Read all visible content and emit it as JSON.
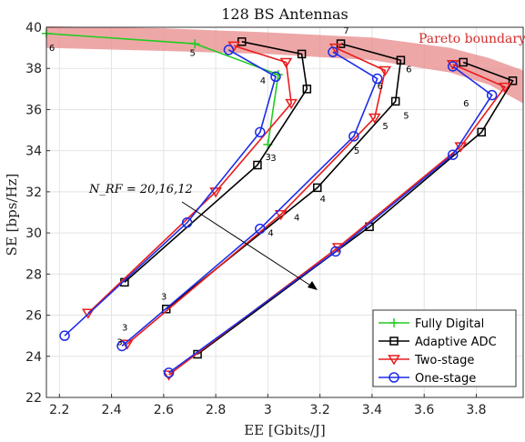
{
  "chart_data": {
    "type": "line",
    "title": "128 BS Antennas",
    "xlabel": "EE [Gbits/J]",
    "ylabel": "SE [bps/Hz]",
    "xlim": [
      2.15,
      3.98
    ],
    "ylim": [
      22,
      40
    ],
    "xticks": [
      "2.2",
      "2.4",
      "2.6",
      "2.8",
      "3",
      "3.2",
      "3.4",
      "3.6",
      "3.8"
    ],
    "yticks": [
      "22",
      "24",
      "26",
      "28",
      "30",
      "32",
      "34",
      "36",
      "38",
      "40"
    ],
    "grid": true,
    "legend_position": "bottom-right",
    "pareto_label": "Pareto boundary",
    "nrf_label": "N_RF = 20,16,12",
    "series": [
      {
        "name": "Fully Digital",
        "color": "#22cc22",
        "marker": "plus",
        "groups": [
          [
            [
              2.15,
              39.7
            ],
            [
              2.72,
              39.2
            ],
            [
              3.04,
              37.7
            ],
            [
              3.0,
              34.3
            ]
          ]
        ]
      },
      {
        "name": "Adaptive ADC",
        "color": "#000000",
        "marker": "square",
        "groups": [
          [
            [
              2.45,
              27.6
            ],
            [
              2.96,
              33.3
            ],
            [
              3.15,
              37.0
            ],
            [
              3.13,
              38.7
            ],
            [
              2.9,
              39.3
            ]
          ],
          [
            [
              2.61,
              26.3
            ],
            [
              3.19,
              32.2
            ],
            [
              3.49,
              36.4
            ],
            [
              3.51,
              38.4
            ],
            [
              3.28,
              39.2
            ]
          ],
          [
            [
              2.73,
              24.1
            ],
            [
              3.39,
              30.3
            ],
            [
              3.82,
              34.9
            ],
            [
              3.94,
              37.4
            ],
            [
              3.75,
              38.3
            ]
          ]
        ]
      },
      {
        "name": "Two-stage",
        "color": "#e81c1c",
        "marker": "triangle",
        "groups": [
          [
            [
              2.31,
              26.1
            ],
            [
              2.8,
              32.0
            ],
            [
              3.09,
              36.3
            ],
            [
              3.07,
              38.3
            ],
            [
              2.87,
              39.1
            ]
          ],
          [
            [
              2.46,
              24.6
            ],
            [
              3.05,
              30.9
            ],
            [
              3.41,
              35.6
            ],
            [
              3.45,
              37.9
            ],
            [
              3.26,
              39.0
            ]
          ],
          [
            [
              2.62,
              23.1
            ],
            [
              3.27,
              29.3
            ],
            [
              3.74,
              34.2
            ],
            [
              3.91,
              37.1
            ],
            [
              3.71,
              38.2
            ]
          ]
        ]
      },
      {
        "name": "One-stage",
        "color": "#1c2ce8",
        "marker": "circle",
        "groups": [
          [
            [
              2.22,
              25.0
            ],
            [
              2.69,
              30.5
            ],
            [
              2.97,
              34.9
            ],
            [
              3.03,
              37.6
            ],
            [
              2.85,
              38.9
            ]
          ],
          [
            [
              2.44,
              24.5
            ],
            [
              2.97,
              30.2
            ],
            [
              3.33,
              34.7
            ],
            [
              3.42,
              37.5
            ],
            [
              3.25,
              38.8
            ]
          ],
          [
            [
              2.62,
              23.2
            ],
            [
              3.26,
              29.1
            ],
            [
              3.71,
              33.8
            ],
            [
              3.86,
              36.7
            ],
            [
              3.71,
              38.1
            ]
          ]
        ]
      }
    ],
    "annotations": [
      {
        "text": "6",
        "x": 2.16,
        "y": 38.85
      },
      {
        "text": "5",
        "x": 2.7,
        "y": 38.6
      },
      {
        "text": "4",
        "x": 2.97,
        "y": 37.25
      },
      {
        "text": "3",
        "x": 3.01,
        "y": 33.5
      },
      {
        "text": "7",
        "x": 3.29,
        "y": 39.7
      },
      {
        "text": "6",
        "x": 3.42,
        "y": 37.0
      },
      {
        "text": "6",
        "x": 3.53,
        "y": 37.8
      },
      {
        "text": "5",
        "x": 3.44,
        "y": 35.05
      },
      {
        "text": "5",
        "x": 3.52,
        "y": 35.55
      },
      {
        "text": "5",
        "x": 3.33,
        "y": 33.85
      },
      {
        "text": "4",
        "x": 3.2,
        "y": 31.5
      },
      {
        "text": "4",
        "x": 3.1,
        "y": 30.6
      },
      {
        "text": "4",
        "x": 3.0,
        "y": 29.85
      },
      {
        "text": "6",
        "x": 3.75,
        "y": 36.15
      },
      {
        "text": "3",
        "x": 2.59,
        "y": 26.75
      },
      {
        "text": "3",
        "x": 2.44,
        "y": 25.25
      },
      {
        "text": "3",
        "x": 2.42,
        "y": 24.55
      },
      {
        "text": "3",
        "x": 2.99,
        "y": 33.55
      }
    ]
  }
}
